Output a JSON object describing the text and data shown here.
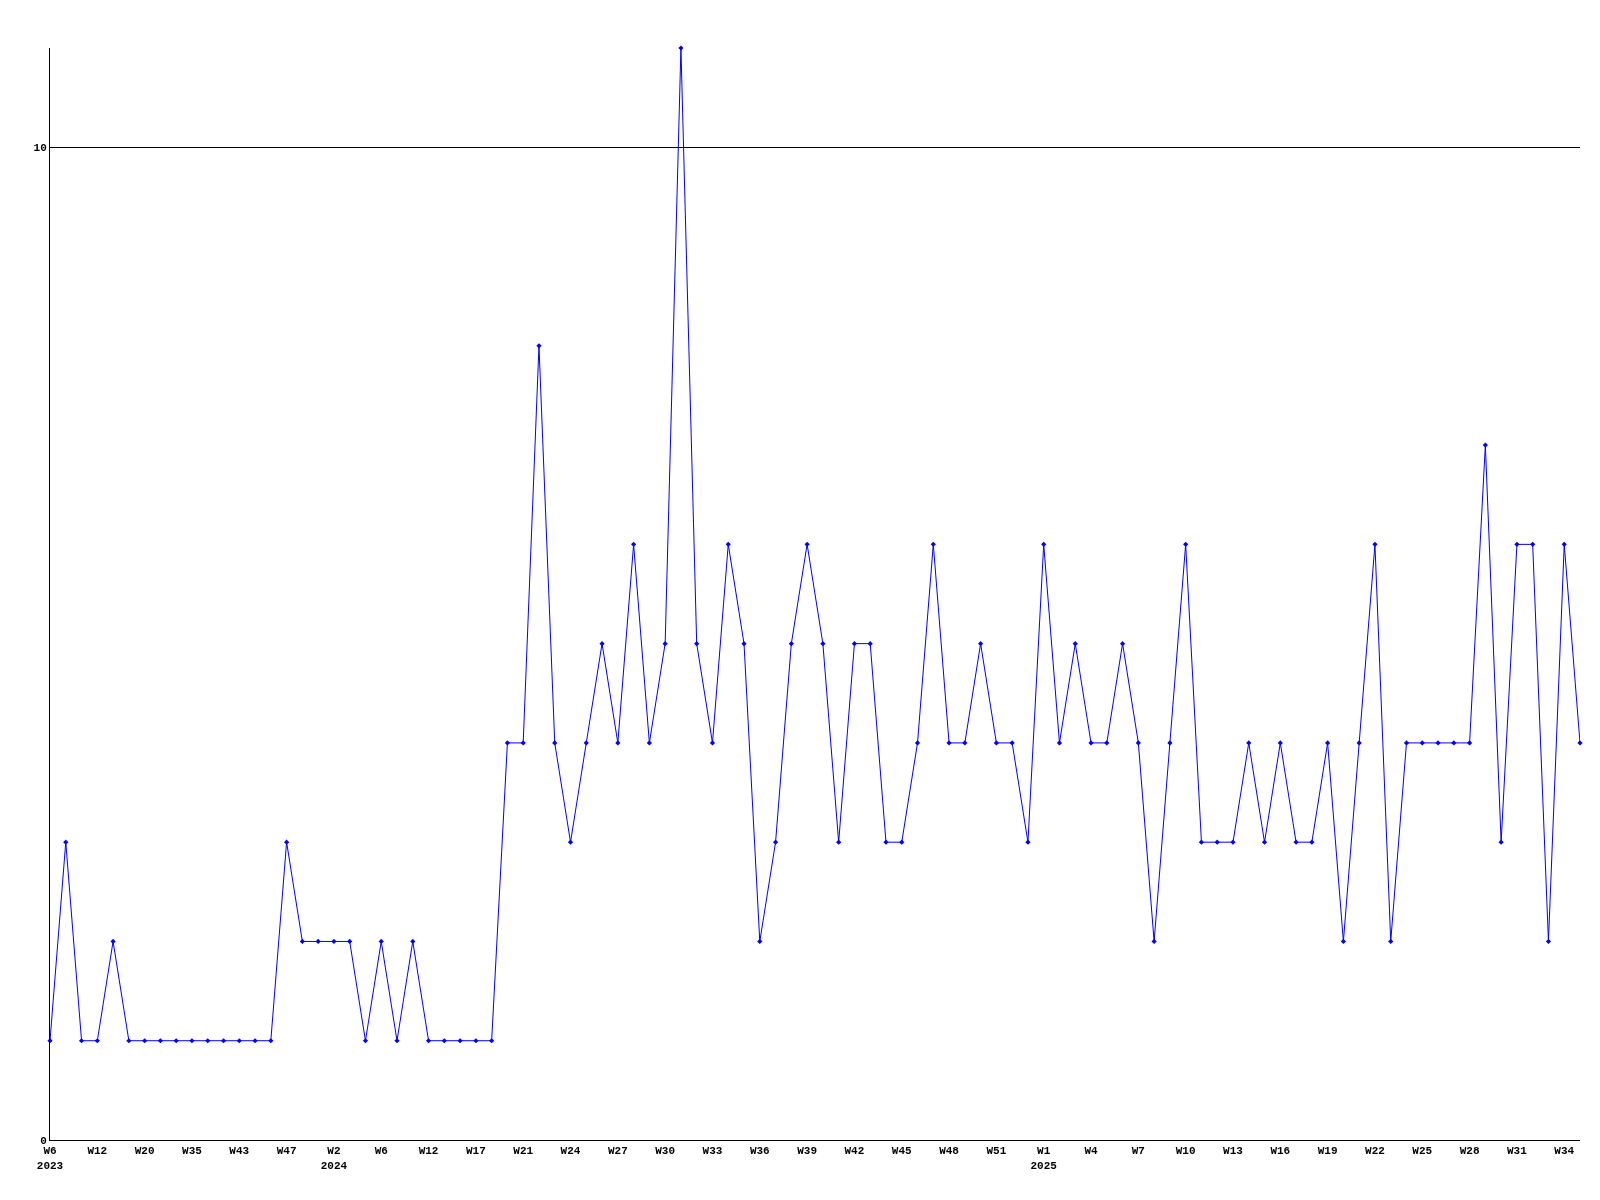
{
  "chart_data": {
    "type": "line",
    "categories": [
      "W6\n2023",
      null,
      null,
      "W12",
      null,
      null,
      "W20",
      null,
      null,
      "W35",
      null,
      null,
      "W43",
      null,
      null,
      "W47",
      null,
      null,
      "W2\n2024",
      null,
      null,
      "W6",
      null,
      null,
      "W12",
      null,
      null,
      "W17",
      null,
      null,
      "W21",
      null,
      null,
      "W24",
      null,
      null,
      "W27",
      null,
      null,
      "W30",
      null,
      null,
      "W33",
      null,
      null,
      "W36",
      null,
      null,
      "W39",
      null,
      null,
      "W42",
      null,
      null,
      "W45",
      null,
      null,
      "W48",
      null,
      null,
      "W51",
      null,
      null,
      "W1\n2025",
      null,
      null,
      "W4",
      null,
      null,
      "W7",
      null,
      null,
      "W10",
      null,
      null,
      "W13",
      null,
      null,
      "W16",
      null,
      null,
      "W19",
      null,
      null,
      "W22",
      null,
      null,
      "W25",
      null,
      null,
      "W28",
      null,
      null,
      "W31",
      null,
      null,
      "W34",
      null
    ],
    "series": [
      {
        "color": "#0000ff",
        "values": [
          1,
          3,
          1,
          1,
          2,
          1,
          1,
          1,
          1,
          1,
          1,
          1,
          1,
          1,
          1,
          3,
          2,
          2,
          2,
          2,
          1,
          2,
          1,
          2,
          1,
          1,
          1,
          1,
          1,
          4,
          4,
          8,
          4,
          3,
          4,
          5,
          4,
          6,
          4,
          5,
          11,
          5,
          4,
          6,
          5,
          2,
          3,
          5,
          6,
          5,
          3,
          5,
          5,
          3,
          3,
          4,
          6,
          4,
          4,
          5,
          4,
          4,
          3,
          6,
          4,
          5,
          4,
          4,
          5,
          4,
          2,
          4,
          6,
          3,
          3,
          3,
          4,
          3,
          4,
          3,
          3,
          4,
          2,
          4,
          6,
          2,
          4,
          4,
          4,
          4,
          4,
          7,
          3,
          6,
          6,
          2,
          6,
          4
        ]
      }
    ],
    "ylim": [
      0,
      11
    ],
    "yticks": [
      0,
      10
    ],
    "grid": "y",
    "marker": "diamond",
    "line_style": "solid",
    "legend": false
  }
}
